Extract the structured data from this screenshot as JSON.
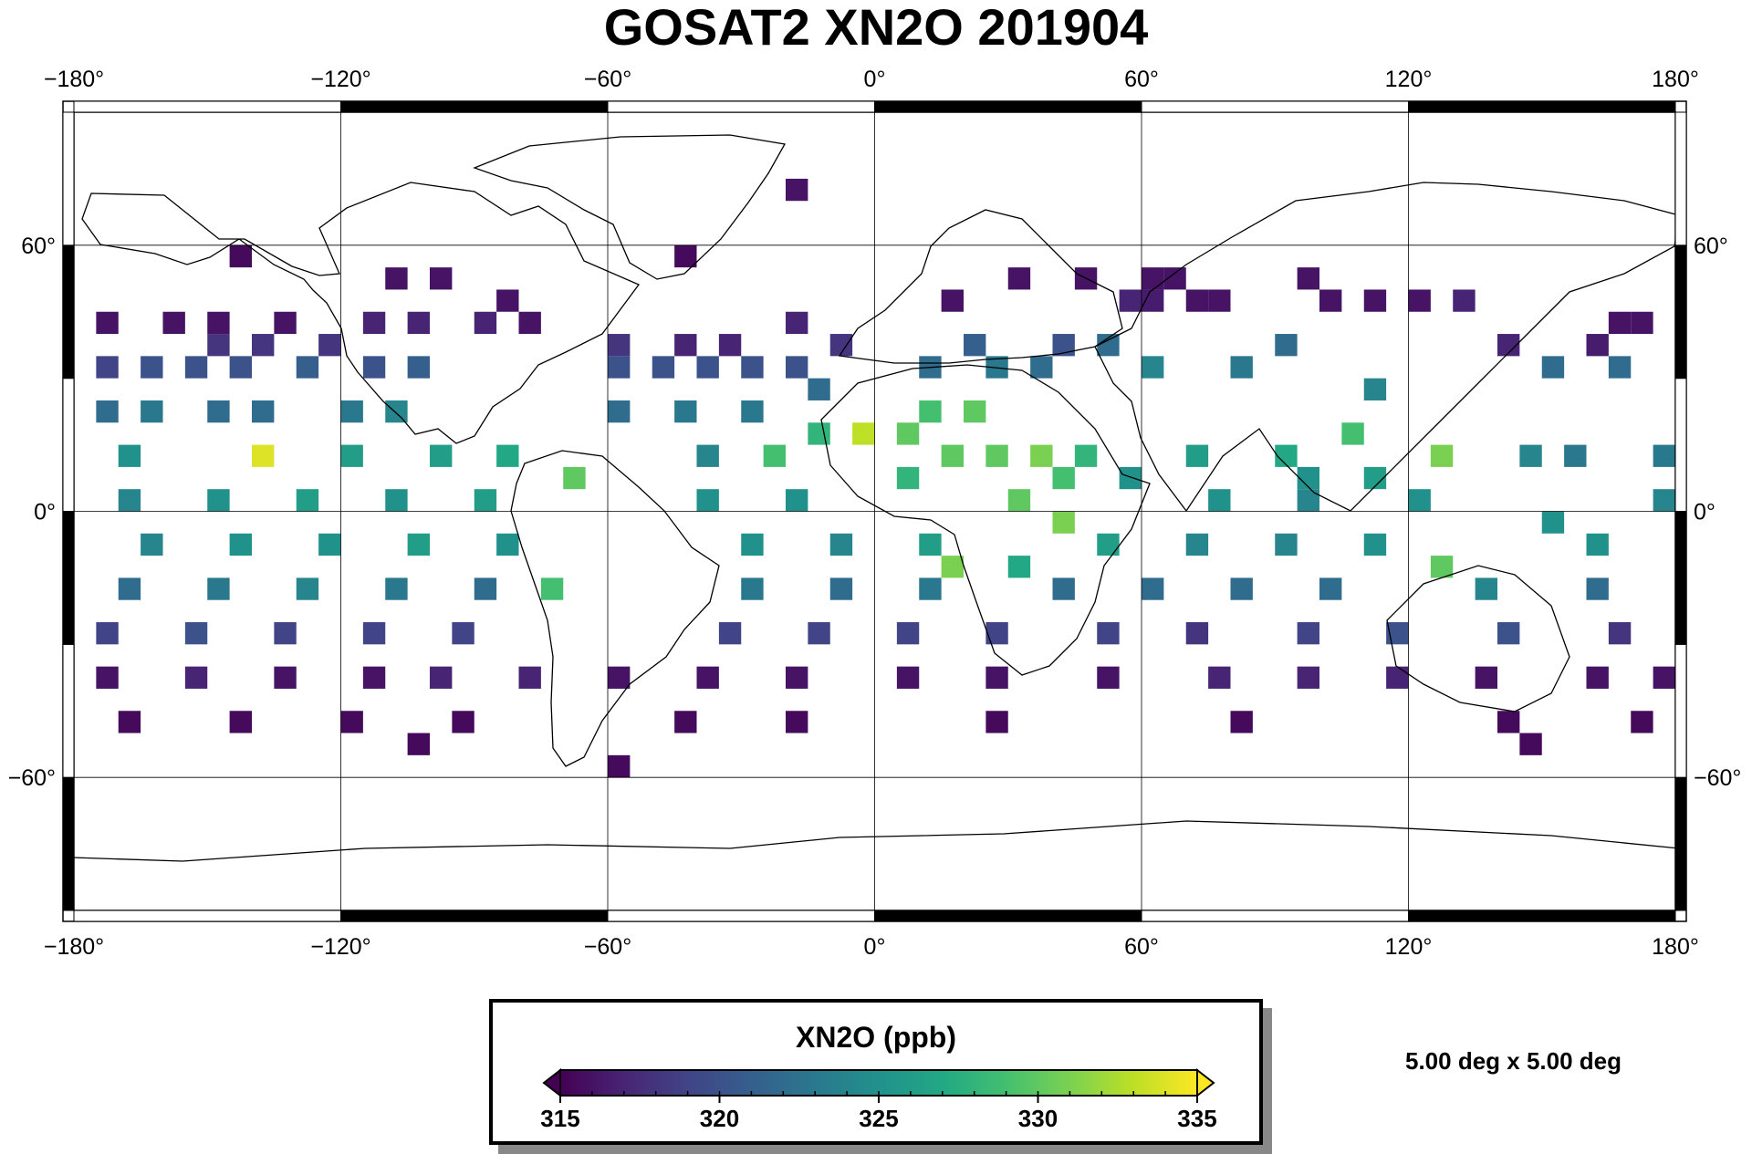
{
  "title": "GOSAT2 XN2O 201904",
  "map": {
    "projection": "equirectangular",
    "lon_range": [
      -180,
      180
    ],
    "lat_range": [
      -90,
      90
    ],
    "lon_ticks": [
      {
        "value": -180,
        "label": "−180°"
      },
      {
        "value": -120,
        "label": "−120°"
      },
      {
        "value": -60,
        "label": "−60°"
      },
      {
        "value": 0,
        "label": "0°"
      },
      {
        "value": 60,
        "label": "60°"
      },
      {
        "value": 120,
        "label": "120°"
      },
      {
        "value": 180,
        "label": "180°"
      }
    ],
    "lat_ticks": [
      {
        "value": 60,
        "label": "60°"
      },
      {
        "value": 0,
        "label": "0°"
      },
      {
        "value": -60,
        "label": "−60°"
      }
    ],
    "grid": true,
    "frame_style": "fancy (black/white alternating)",
    "coastlines": true
  },
  "chart_data": {
    "type": "heatmap",
    "grid_resolution_deg": 5,
    "colormap": "viridis",
    "variable_label": "XN2O (ppb)",
    "value_range": [
      315,
      335
    ],
    "colorbar_ticks": [
      {
        "value": 315,
        "label": "315"
      },
      {
        "value": 320,
        "label": "320"
      },
      {
        "value": 325,
        "label": "325"
      },
      {
        "value": 330,
        "label": "330"
      },
      {
        "value": 335,
        "label": "335"
      }
    ],
    "colorbar_minor_step": 1,
    "cells": [
      [
        -20,
        70,
        316
      ],
      [
        -45,
        55,
        315.5
      ],
      [
        -145,
        55,
        315.5
      ],
      [
        -110,
        50,
        316
      ],
      [
        -100,
        50,
        316
      ],
      [
        -85,
        45,
        316
      ],
      [
        15,
        45,
        316
      ],
      [
        30,
        50,
        316
      ],
      [
        45,
        50,
        316
      ],
      [
        60,
        50,
        316
      ],
      [
        65,
        50,
        316
      ],
      [
        55,
        45,
        317
      ],
      [
        60,
        45,
        316.5
      ],
      [
        70,
        45,
        316
      ],
      [
        75,
        45,
        316
      ],
      [
        95,
        50,
        316
      ],
      [
        100,
        45,
        316
      ],
      [
        110,
        45,
        316
      ],
      [
        120,
        45,
        316
      ],
      [
        130,
        45,
        317
      ],
      [
        -175,
        40,
        316
      ],
      [
        -160,
        40,
        316
      ],
      [
        -150,
        40,
        316
      ],
      [
        -135,
        40,
        316
      ],
      [
        -150,
        35,
        318
      ],
      [
        -140,
        35,
        318
      ],
      [
        -125,
        35,
        318
      ],
      [
        -115,
        40,
        317
      ],
      [
        -105,
        40,
        317
      ],
      [
        -90,
        40,
        317
      ],
      [
        -80,
        40,
        316
      ],
      [
        -20,
        40,
        317
      ],
      [
        165,
        40,
        316
      ],
      [
        170,
        40,
        316
      ],
      [
        160,
        35,
        316.5
      ],
      [
        140,
        35,
        317
      ],
      [
        -60,
        35,
        318
      ],
      [
        -45,
        35,
        317
      ],
      [
        -35,
        35,
        317
      ],
      [
        -10,
        35,
        318
      ],
      [
        20,
        35,
        321
      ],
      [
        40,
        35,
        320
      ],
      [
        50,
        35,
        322
      ],
      [
        90,
        35,
        322
      ],
      [
        -175,
        30,
        319
      ],
      [
        -165,
        30,
        320
      ],
      [
        -155,
        30,
        320
      ],
      [
        -145,
        30,
        320
      ],
      [
        -130,
        30,
        321
      ],
      [
        -115,
        30,
        320
      ],
      [
        -105,
        30,
        321
      ],
      [
        -60,
        30,
        320
      ],
      [
        -50,
        30,
        320
      ],
      [
        -40,
        30,
        320
      ],
      [
        -30,
        30,
        320
      ],
      [
        -20,
        30,
        320
      ],
      [
        -15,
        25,
        322
      ],
      [
        10,
        30,
        322
      ],
      [
        25,
        30,
        323
      ],
      [
        35,
        30,
        322
      ],
      [
        60,
        30,
        324
      ],
      [
        80,
        30,
        323
      ],
      [
        110,
        25,
        324
      ],
      [
        150,
        30,
        322
      ],
      [
        165,
        30,
        322
      ],
      [
        -175,
        20,
        322
      ],
      [
        -165,
        20,
        323
      ],
      [
        -150,
        20,
        322
      ],
      [
        -140,
        20,
        322
      ],
      [
        -120,
        20,
        323
      ],
      [
        -110,
        20,
        324
      ],
      [
        -60,
        20,
        322
      ],
      [
        -45,
        20,
        323
      ],
      [
        -30,
        20,
        323
      ],
      [
        -15,
        15,
        328
      ],
      [
        -5,
        15,
        333
      ],
      [
        10,
        20,
        329
      ],
      [
        20,
        20,
        330
      ],
      [
        5,
        15,
        330
      ],
      [
        -140,
        10,
        334
      ],
      [
        -170,
        10,
        325
      ],
      [
        -120,
        10,
        326
      ],
      [
        -100,
        10,
        326
      ],
      [
        -85,
        10,
        327
      ],
      [
        -40,
        10,
        324
      ],
      [
        -25,
        10,
        329
      ],
      [
        15,
        10,
        330
      ],
      [
        25,
        10,
        330
      ],
      [
        35,
        10,
        331
      ],
      [
        45,
        10,
        328
      ],
      [
        70,
        10,
        326
      ],
      [
        90,
        10,
        327
      ],
      [
        105,
        15,
        329
      ],
      [
        125,
        10,
        331
      ],
      [
        145,
        10,
        324
      ],
      [
        155,
        10,
        323
      ],
      [
        175,
        10,
        323
      ],
      [
        -70,
        5,
        330
      ],
      [
        5,
        5,
        328
      ],
      [
        40,
        5,
        329
      ],
      [
        55,
        5,
        325
      ],
      [
        95,
        5,
        325
      ],
      [
        110,
        5,
        326
      ],
      [
        -170,
        0,
        324
      ],
      [
        -150,
        0,
        325
      ],
      [
        -130,
        0,
        326
      ],
      [
        -110,
        0,
        325
      ],
      [
        -90,
        0,
        326
      ],
      [
        -40,
        0,
        325
      ],
      [
        -20,
        0,
        325
      ],
      [
        30,
        0,
        330
      ],
      [
        40,
        -5,
        331
      ],
      [
        75,
        0,
        325
      ],
      [
        95,
        0,
        324
      ],
      [
        120,
        0,
        325
      ],
      [
        150,
        -5,
        325
      ],
      [
        175,
        0,
        324
      ],
      [
        -165,
        -10,
        324
      ],
      [
        -145,
        -10,
        325
      ],
      [
        -125,
        -10,
        325
      ],
      [
        -105,
        -10,
        326
      ],
      [
        -85,
        -10,
        325
      ],
      [
        -30,
        -10,
        325
      ],
      [
        -10,
        -10,
        324
      ],
      [
        10,
        -10,
        326
      ],
      [
        15,
        -15,
        331
      ],
      [
        30,
        -15,
        327
      ],
      [
        50,
        -10,
        326
      ],
      [
        70,
        -10,
        324
      ],
      [
        90,
        -10,
        324
      ],
      [
        110,
        -10,
        325
      ],
      [
        125,
        -15,
        330
      ],
      [
        160,
        -10,
        325
      ],
      [
        -75,
        -20,
        329
      ],
      [
        -170,
        -20,
        322
      ],
      [
        -150,
        -20,
        323
      ],
      [
        -130,
        -20,
        324
      ],
      [
        -110,
        -20,
        323
      ],
      [
        -90,
        -20,
        322
      ],
      [
        -30,
        -20,
        323
      ],
      [
        -10,
        -20,
        322
      ],
      [
        10,
        -20,
        323
      ],
      [
        40,
        -20,
        322
      ],
      [
        60,
        -20,
        322
      ],
      [
        80,
        -20,
        322
      ],
      [
        100,
        -20,
        322
      ],
      [
        135,
        -20,
        324
      ],
      [
        160,
        -20,
        322
      ],
      [
        -175,
        -30,
        319
      ],
      [
        -155,
        -30,
        320
      ],
      [
        -135,
        -30,
        319
      ],
      [
        -115,
        -30,
        319
      ],
      [
        -95,
        -30,
        319
      ],
      [
        -35,
        -30,
        319
      ],
      [
        -15,
        -30,
        319
      ],
      [
        5,
        -30,
        319
      ],
      [
        25,
        -30,
        319
      ],
      [
        50,
        -30,
        319
      ],
      [
        70,
        -30,
        318
      ],
      [
        95,
        -30,
        319
      ],
      [
        115,
        -30,
        320
      ],
      [
        140,
        -30,
        320
      ],
      [
        165,
        -30,
        318
      ],
      [
        -175,
        -40,
        316
      ],
      [
        -155,
        -40,
        317
      ],
      [
        -135,
        -40,
        316
      ],
      [
        -115,
        -40,
        316
      ],
      [
        -100,
        -40,
        317
      ],
      [
        -80,
        -40,
        317
      ],
      [
        -60,
        -40,
        316
      ],
      [
        -40,
        -40,
        316
      ],
      [
        -20,
        -40,
        316
      ],
      [
        5,
        -40,
        316
      ],
      [
        25,
        -40,
        316
      ],
      [
        50,
        -40,
        316
      ],
      [
        75,
        -40,
        317
      ],
      [
        95,
        -40,
        317
      ],
      [
        115,
        -40,
        317
      ],
      [
        135,
        -40,
        316
      ],
      [
        160,
        -40,
        316
      ],
      [
        175,
        -40,
        316
      ],
      [
        -170,
        -50,
        315.5
      ],
      [
        -145,
        -50,
        315.5
      ],
      [
        -120,
        -50,
        315.5
      ],
      [
        -95,
        -50,
        315.5
      ],
      [
        -45,
        -50,
        315.5
      ],
      [
        -20,
        -50,
        315.5
      ],
      [
        25,
        -50,
        315.5
      ],
      [
        80,
        -50,
        315.5
      ],
      [
        140,
        -50,
        315.5
      ],
      [
        170,
        -50,
        315.5
      ],
      [
        -105,
        -55,
        315.5
      ],
      [
        -60,
        -60,
        315.5
      ],
      [
        145,
        -55,
        315.5
      ]
    ]
  },
  "legend": {
    "title": "XN2O (ppb)"
  },
  "resolution_note": "5.00 deg x 5.00 deg",
  "colors": {
    "frame": "#000000",
    "grid": "#000000",
    "missing": "#ffffff"
  }
}
